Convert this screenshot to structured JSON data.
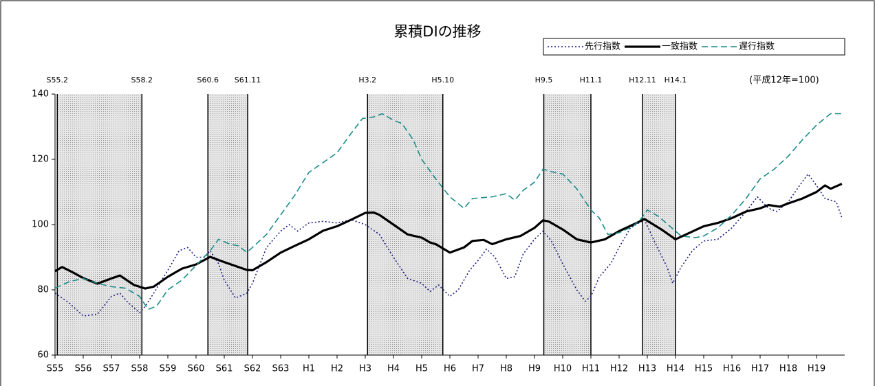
{
  "chart_data": {
    "type": "line",
    "title": "累積DIの推移",
    "note": "(平成12年=100)",
    "xlim": [
      1980,
      2008
    ],
    "ylim": [
      60,
      140
    ],
    "yticks": [
      60,
      80,
      100,
      120,
      140
    ],
    "xticks": [
      {
        "value": 1980,
        "label": "S55"
      },
      {
        "value": 1981,
        "label": "S56"
      },
      {
        "value": 1982,
        "label": "S57"
      },
      {
        "value": 1983,
        "label": "S58"
      },
      {
        "value": 1984,
        "label": "S59"
      },
      {
        "value": 1985,
        "label": "S60"
      },
      {
        "value": 1986,
        "label": "S61"
      },
      {
        "value": 1987,
        "label": "S62"
      },
      {
        "value": 1988,
        "label": "S63"
      },
      {
        "value": 1989,
        "label": "H1"
      },
      {
        "value": 1990,
        "label": "H2"
      },
      {
        "value": 1991,
        "label": "H3"
      },
      {
        "value": 1992,
        "label": "H4"
      },
      {
        "value": 1993,
        "label": "H5"
      },
      {
        "value": 1994,
        "label": "H6"
      },
      {
        "value": 1995,
        "label": "H7"
      },
      {
        "value": 1996,
        "label": "H8"
      },
      {
        "value": 1997,
        "label": "H9"
      },
      {
        "value": 1998,
        "label": "H10"
      },
      {
        "value": 1999,
        "label": "H11"
      },
      {
        "value": 2000,
        "label": "H12"
      },
      {
        "value": 2001,
        "label": "H13"
      },
      {
        "value": 2002,
        "label": "H14"
      },
      {
        "value": 2003,
        "label": "H15"
      },
      {
        "value": 2004,
        "label": "H16"
      },
      {
        "value": 2005,
        "label": "H17"
      },
      {
        "value": 2006,
        "label": "H18"
      },
      {
        "value": 2007,
        "label": "H19"
      }
    ],
    "grid": false,
    "legend": "top-right",
    "shade_color": "#999999",
    "periods": [
      {
        "from": 1980.08,
        "to": 1983.08,
        "from_label": "S55.2",
        "to_label": "S58.2"
      },
      {
        "from": 1985.42,
        "to": 1986.83,
        "from_label": "S60.6",
        "to_label": "S61.11"
      },
      {
        "from": 1991.08,
        "to": 1993.75,
        "from_label": "H3.2",
        "to_label": "H5.10"
      },
      {
        "from": 1997.33,
        "to": 1999.0,
        "from_label": "H9.5",
        "to_label": "H11.1"
      },
      {
        "from": 2000.83,
        "to": 2002.0,
        "from_label": "H12.11",
        "to_label": "H14.1"
      }
    ],
    "series": [
      {
        "name": "先行指数",
        "color": "#1a1a80",
        "style": "dotted",
        "x": [
          1980,
          1980.5,
          1981,
          1981.5,
          1982,
          1982.3,
          1982.6,
          1983,
          1983.2,
          1983.5,
          1984,
          1984.4,
          1984.7,
          1985,
          1985.3,
          1985.5,
          1985.8,
          1986,
          1986.4,
          1986.8,
          1987,
          1987.5,
          1988,
          1988.3,
          1988.6,
          1989,
          1989.5,
          1990,
          1990.5,
          1991,
          1991.5,
          1992,
          1992.5,
          1993,
          1993.3,
          1993.6,
          1994,
          1994.3,
          1994.7,
          1995,
          1995.3,
          1995.6,
          1996,
          1996.3,
          1996.6,
          1997,
          1997.3,
          1997.6,
          1998,
          1998.5,
          1998.8,
          1999,
          1999.3,
          1999.7,
          2000,
          2000.4,
          2000.9,
          2001.3,
          2001.7,
          2001.9,
          2002.2,
          2002.6,
          2003,
          2003.5,
          2004,
          2004.5,
          2004.9,
          2005.3,
          2005.6,
          2006,
          2006.4,
          2006.7,
          2007,
          2007.3,
          2007.7,
          2007.9
        ],
        "values": [
          79,
          76,
          72,
          72.5,
          78,
          79,
          76,
          73,
          75,
          79,
          86,
          92,
          93,
          90,
          90,
          92,
          88,
          83,
          77.5,
          79,
          82,
          93,
          98,
          100,
          98,
          100.5,
          101,
          100.5,
          101.5,
          100,
          97,
          90,
          83.5,
          82,
          79.5,
          81.5,
          78,
          80,
          86,
          89,
          92.5,
          90,
          83.5,
          84,
          91,
          95.5,
          98,
          95,
          88,
          80,
          76.5,
          78,
          84,
          88,
          93,
          99,
          101.5,
          94,
          87,
          82,
          87,
          92,
          95,
          95.5,
          99,
          104,
          108.5,
          105,
          104,
          107,
          112,
          115.5,
          112,
          108,
          107,
          102
        ]
      },
      {
        "name": "一致指数",
        "color": "#000000",
        "style": "solid",
        "x": [
          1980,
          1980.25,
          1980.6,
          1981,
          1981.5,
          1982,
          1982.3,
          1982.8,
          1983.2,
          1983.5,
          1984,
          1984.5,
          1985,
          1985.5,
          1986,
          1986.5,
          1986.8,
          1987,
          1987.5,
          1988,
          1988.5,
          1989,
          1989.5,
          1990,
          1990.5,
          1991,
          1991.3,
          1991.5,
          1992,
          1992.5,
          1993,
          1993.3,
          1993.5,
          1994,
          1994.5,
          1994.8,
          1995.2,
          1995.5,
          1996,
          1996.5,
          1997,
          1997.3,
          1997.5,
          1998,
          1998.5,
          1999,
          1999.5,
          2000,
          2000.5,
          2000.9,
          2001.5,
          2002,
          2002.5,
          2003,
          2003.5,
          2004,
          2004.5,
          2005,
          2005.3,
          2005.7,
          2006,
          2006.5,
          2007,
          2007.3,
          2007.5,
          2007.9
        ],
        "values": [
          85.7,
          87,
          85.5,
          83.6,
          81.9,
          83.5,
          84.4,
          81.5,
          80.4,
          81,
          84,
          86.5,
          87.8,
          90.1,
          88.5,
          87,
          86.1,
          86,
          88.5,
          91.4,
          93.5,
          95.5,
          98.1,
          99.5,
          101.5,
          103.6,
          103.7,
          103,
          100,
          97,
          96,
          94.5,
          94,
          91.4,
          93,
          95,
          95.3,
          94,
          95.5,
          96.5,
          99,
          101.3,
          101,
          98.5,
          95.5,
          94.5,
          95.5,
          98,
          100,
          101.7,
          98.5,
          95.5,
          97.5,
          99.5,
          100.5,
          102,
          104,
          105,
          106,
          105.5,
          106.5,
          108,
          110,
          112,
          111,
          112.5
        ]
      },
      {
        "name": "遅行指数",
        "color": "#1a8a8a",
        "style": "dashed",
        "x": [
          1980,
          1980.5,
          1981,
          1981.5,
          1982,
          1982.5,
          1983,
          1983.3,
          1983.6,
          1984,
          1984.5,
          1985,
          1985.5,
          1985.8,
          1986.2,
          1986.5,
          1986.8,
          1987,
          1987.5,
          1988,
          1988.5,
          1989,
          1989.5,
          1990,
          1990.5,
          1990.9,
          1991.3,
          1991.6,
          1992,
          1992.3,
          1992.7,
          1993,
          1993.5,
          1994,
          1994.5,
          1994.8,
          1995.5,
          1996,
          1996.3,
          1996.6,
          1997,
          1997.3,
          1997.7,
          1998,
          1998.5,
          1999,
          1999.3,
          1999.6,
          2000,
          2000.5,
          2000.8,
          2001,
          2001.4,
          2001.8,
          2002.2,
          2002.7,
          2003,
          2003.5,
          2004,
          2004.5,
          2005,
          2005.5,
          2006,
          2006.5,
          2007,
          2007.5,
          2007.9
        ],
        "values": [
          80.5,
          82.5,
          83.5,
          82,
          81,
          80.5,
          78,
          74,
          75,
          80,
          83,
          87.5,
          92,
          95.5,
          94,
          93.5,
          91.5,
          93,
          97,
          103,
          109,
          116,
          119,
          122,
          128,
          132.5,
          133,
          134,
          132,
          131,
          126,
          120,
          114,
          108.5,
          105,
          108,
          108.5,
          109.5,
          107.5,
          110.5,
          113,
          117,
          116,
          115.5,
          111,
          104.5,
          102,
          97,
          97.5,
          99.5,
          102,
          104.5,
          102.5,
          99.5,
          96.5,
          96,
          96.5,
          99,
          103,
          108,
          114,
          117,
          121,
          126,
          130.5,
          134,
          134
        ]
      }
    ]
  }
}
